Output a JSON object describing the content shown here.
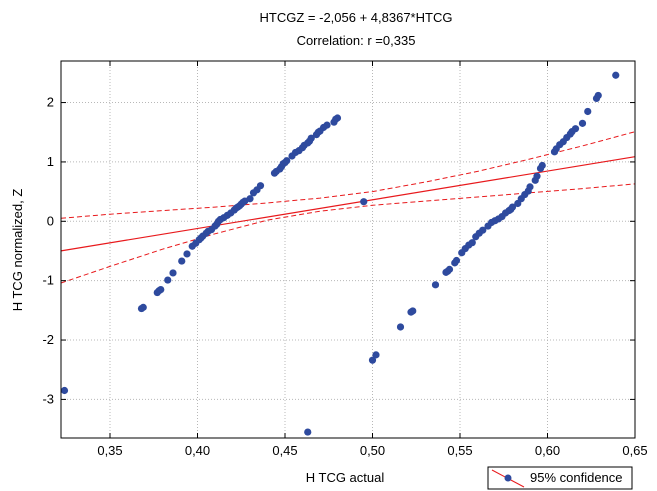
{
  "chart_data": {
    "type": "scatter",
    "title": "HTCGZ = -2,056 + 4,8367*HTCG",
    "subtitle": "Correlation: r =0,335",
    "xlabel": "H TCG actual",
    "ylabel": "H TCG normalized, Z",
    "xlim": [
      0.322,
      0.65
    ],
    "ylim": [
      -3.65,
      2.7
    ],
    "xticks": [
      0.35,
      0.4,
      0.45,
      0.5,
      0.55,
      0.6,
      0.65
    ],
    "xtick_labels": [
      "0,35",
      "0,40",
      "0,45",
      "0,50",
      "0,55",
      "0,60",
      "0,65"
    ],
    "yticks": [
      -3,
      -2,
      -1,
      0,
      1,
      2
    ],
    "ytick_labels": [
      "-3",
      "-2",
      "-1",
      "0",
      "1",
      "2"
    ],
    "grid": true,
    "legend_position": "bottom-right",
    "legend": [
      "95% confidence"
    ],
    "colors": {
      "points": "#2e4a9e",
      "line": "#e8191c",
      "grid": "#b8b8b8"
    },
    "regression": {
      "intercept": -2.056,
      "slope": 4.8367
    },
    "confidence_band": {
      "x": [
        0.322,
        0.35,
        0.38,
        0.41,
        0.44,
        0.47,
        0.5,
        0.53,
        0.56,
        0.59,
        0.62,
        0.65
      ],
      "upper": [
        0.05,
        0.12,
        0.18,
        0.24,
        0.31,
        0.39,
        0.5,
        0.66,
        0.84,
        1.05,
        1.27,
        1.51
      ],
      "lower": [
        -1.04,
        -0.76,
        -0.47,
        -0.21,
        0.02,
        0.17,
        0.27,
        0.34,
        0.41,
        0.48,
        0.55,
        0.63
      ]
    },
    "points": {
      "x": [
        0.324,
        0.368,
        0.369,
        0.377,
        0.378,
        0.379,
        0.383,
        0.386,
        0.391,
        0.394,
        0.397,
        0.399,
        0.401,
        0.402,
        0.403,
        0.405,
        0.406,
        0.408,
        0.41,
        0.411,
        0.412,
        0.413,
        0.415,
        0.417,
        0.419,
        0.421,
        0.422,
        0.423,
        0.424,
        0.425,
        0.426,
        0.427,
        0.43,
        0.432,
        0.434,
        0.436,
        0.444,
        0.445,
        0.447,
        0.448,
        0.449,
        0.45,
        0.451,
        0.454,
        0.456,
        0.458,
        0.46,
        0.461,
        0.463,
        0.464,
        0.465,
        0.468,
        0.469,
        0.47,
        0.472,
        0.474,
        0.478,
        0.479,
        0.48,
        0.463,
        0.495,
        0.5,
        0.502,
        0.516,
        0.522,
        0.523,
        0.536,
        0.542,
        0.543,
        0.544,
        0.547,
        0.548,
        0.551,
        0.553,
        0.555,
        0.557,
        0.559,
        0.561,
        0.563,
        0.566,
        0.568,
        0.57,
        0.572,
        0.574,
        0.576,
        0.578,
        0.579,
        0.58,
        0.583,
        0.585,
        0.587,
        0.589,
        0.59,
        0.593,
        0.594,
        0.596,
        0.597,
        0.604,
        0.605,
        0.607,
        0.609,
        0.611,
        0.613,
        0.614,
        0.616,
        0.62,
        0.623,
        0.628,
        0.629,
        0.639
      ],
      "y": [
        -2.85,
        -1.47,
        -1.45,
        -1.2,
        -1.17,
        -1.15,
        -0.99,
        -0.87,
        -0.67,
        -0.55,
        -0.42,
        -0.37,
        -0.31,
        -0.28,
        -0.25,
        -0.2,
        -0.17,
        -0.14,
        -0.08,
        -0.05,
        0.0,
        0.03,
        0.06,
        0.1,
        0.14,
        0.19,
        0.22,
        0.24,
        0.26,
        0.29,
        0.32,
        0.34,
        0.38,
        0.48,
        0.53,
        0.6,
        0.81,
        0.84,
        0.88,
        0.92,
        0.97,
        0.99,
        1.02,
        1.1,
        1.16,
        1.19,
        1.24,
        1.28,
        1.32,
        1.35,
        1.4,
        1.46,
        1.5,
        1.52,
        1.58,
        1.62,
        1.67,
        1.72,
        1.74,
        -3.55,
        0.33,
        -2.34,
        -2.25,
        -1.78,
        -1.53,
        -1.51,
        -1.07,
        -0.86,
        -0.84,
        -0.81,
        -0.7,
        -0.66,
        -0.53,
        -0.46,
        -0.4,
        -0.36,
        -0.26,
        -0.2,
        -0.15,
        -0.08,
        -0.02,
        0.01,
        0.04,
        0.08,
        0.14,
        0.18,
        0.2,
        0.24,
        0.3,
        0.38,
        0.45,
        0.51,
        0.58,
        0.69,
        0.76,
        0.89,
        0.94,
        1.17,
        1.22,
        1.29,
        1.34,
        1.41,
        1.47,
        1.51,
        1.56,
        1.65,
        1.85,
        2.07,
        2.12,
        2.46
      ]
    }
  }
}
